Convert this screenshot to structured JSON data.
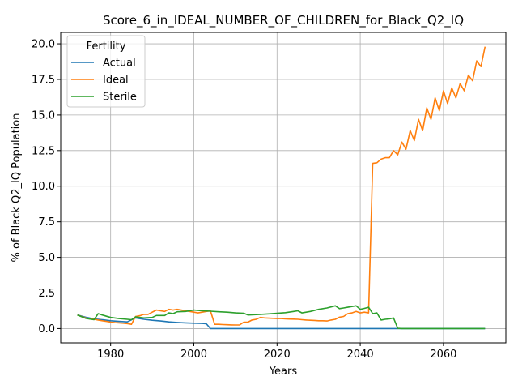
{
  "chart_data": {
    "type": "line",
    "title": "Score_6_in_IDEAL_NUMBER_OF_CHILDREN_for_Black_Q2_IQ",
    "xlabel": "Years",
    "ylabel": "% of Black Q2_IQ Population",
    "xlim": [
      1968,
      2075
    ],
    "ylim": [
      -1.0,
      20.8
    ],
    "xticks": [
      1980,
      2000,
      2020,
      2040,
      2060
    ],
    "xtick_labels": [
      "1980",
      "2000",
      "2020",
      "2040",
      "2060"
    ],
    "yticks": [
      0.0,
      2.5,
      5.0,
      7.5,
      10.0,
      12.5,
      15.0,
      17.5,
      20.0
    ],
    "ytick_labels": [
      "0.0",
      "2.5",
      "5.0",
      "7.5",
      "10.0",
      "12.5",
      "15.0",
      "17.5",
      "20.0"
    ],
    "grid": true,
    "legend": {
      "title": "Fertility",
      "placement": "top-left"
    },
    "series": [
      {
        "name": "Actual",
        "color": "#1f77b4",
        "x": [
          1972,
          1974,
          1976,
          1978,
          1980,
          1982,
          1984,
          1986,
          1988,
          1990,
          1992,
          1994,
          1996,
          1998,
          2000,
          2002,
          2003,
          2004,
          2010,
          2020,
          2030,
          2040,
          2050,
          2060,
          2070
        ],
        "y": [
          0.95,
          0.8,
          0.68,
          0.62,
          0.55,
          0.5,
          0.47,
          0.75,
          0.65,
          0.58,
          0.53,
          0.47,
          0.43,
          0.4,
          0.38,
          0.36,
          0.34,
          0.0,
          0.0,
          0.0,
          0.0,
          0.0,
          0.0,
          0.0,
          0.0
        ]
      },
      {
        "name": "Ideal",
        "color": "#ff7f0e",
        "x": [
          1972,
          1973,
          1974,
          1975,
          1976,
          1977,
          1978,
          1979,
          1980,
          1981,
          1982,
          1983,
          1984,
          1985,
          1986,
          1987,
          1988,
          1989,
          1990,
          1991,
          1992,
          1993,
          1994,
          1995,
          1996,
          1997,
          1998,
          1999,
          2000,
          2001,
          2002,
          2003,
          2004,
          2005,
          2006,
          2007,
          2008,
          2009,
          2010,
          2011,
          2012,
          2013,
          2014,
          2015,
          2016,
          2017,
          2018,
          2019,
          2020,
          2021,
          2022,
          2023,
          2024,
          2025,
          2026,
          2027,
          2028,
          2029,
          2030,
          2031,
          2032,
          2033,
          2034,
          2035,
          2036,
          2037,
          2038,
          2039,
          2040,
          2041,
          2042,
          2043,
          2044,
          2045,
          2046,
          2047,
          2048,
          2049,
          2050,
          2051,
          2052,
          2053,
          2054,
          2055,
          2056,
          2057,
          2058,
          2059,
          2060,
          2061,
          2062,
          2063,
          2064,
          2065,
          2066,
          2067,
          2068,
          2069,
          2070
        ],
        "y": [
          0.95,
          0.85,
          0.75,
          0.68,
          0.65,
          0.6,
          0.55,
          0.5,
          0.45,
          0.42,
          0.4,
          0.38,
          0.35,
          0.3,
          0.85,
          0.9,
          1.0,
          1.0,
          1.15,
          1.3,
          1.25,
          1.2,
          1.35,
          1.3,
          1.35,
          1.3,
          1.25,
          1.2,
          1.15,
          1.1,
          1.15,
          1.2,
          1.25,
          0.3,
          0.3,
          0.28,
          0.27,
          0.26,
          0.25,
          0.25,
          0.45,
          0.45,
          0.6,
          0.65,
          0.78,
          0.75,
          0.73,
          0.72,
          0.7,
          0.7,
          0.68,
          0.67,
          0.66,
          0.65,
          0.62,
          0.6,
          0.58,
          0.57,
          0.55,
          0.55,
          0.53,
          0.6,
          0.65,
          0.8,
          0.85,
          1.05,
          1.1,
          1.2,
          1.1,
          1.15,
          1.1,
          11.6,
          11.65,
          11.9,
          12.0,
          12.0,
          12.5,
          12.2,
          13.1,
          12.6,
          13.9,
          13.2,
          14.7,
          13.9,
          15.5,
          14.7,
          16.2,
          15.3,
          16.7,
          15.8,
          16.9,
          16.2,
          17.2,
          16.7,
          17.8,
          17.4,
          18.8,
          18.4,
          19.8
        ]
      },
      {
        "name": "Sterile",
        "color": "#2ca02c",
        "x": [
          1972,
          1974,
          1976,
          1977,
          1978,
          1980,
          1982,
          1984,
          1985,
          1986,
          1988,
          1990,
          1991,
          1993,
          1994,
          1995,
          1996,
          1998,
          2000,
          2002,
          2004,
          2006,
          2008,
          2010,
          2012,
          2013,
          2014,
          2016,
          2018,
          2020,
          2022,
          2024,
          2025,
          2026,
          2028,
          2030,
          2032,
          2034,
          2035,
          2036,
          2037,
          2038,
          2039,
          2040,
          2041,
          2042,
          2043,
          2044,
          2045,
          2046,
          2047,
          2048,
          2049,
          2050,
          2060,
          2070
        ],
        "y": [
          0.95,
          0.72,
          0.62,
          1.05,
          0.95,
          0.78,
          0.7,
          0.65,
          0.62,
          0.82,
          0.75,
          0.78,
          0.92,
          0.92,
          1.1,
          1.05,
          1.18,
          1.2,
          1.3,
          1.25,
          1.22,
          1.18,
          1.15,
          1.1,
          1.08,
          0.95,
          0.97,
          1.0,
          1.03,
          1.07,
          1.12,
          1.2,
          1.25,
          1.1,
          1.2,
          1.35,
          1.45,
          1.6,
          1.4,
          1.45,
          1.5,
          1.55,
          1.6,
          1.35,
          1.42,
          1.5,
          1.05,
          1.1,
          0.6,
          0.65,
          0.68,
          0.75,
          0.02,
          0.0,
          0.0,
          0.0
        ]
      }
    ]
  }
}
